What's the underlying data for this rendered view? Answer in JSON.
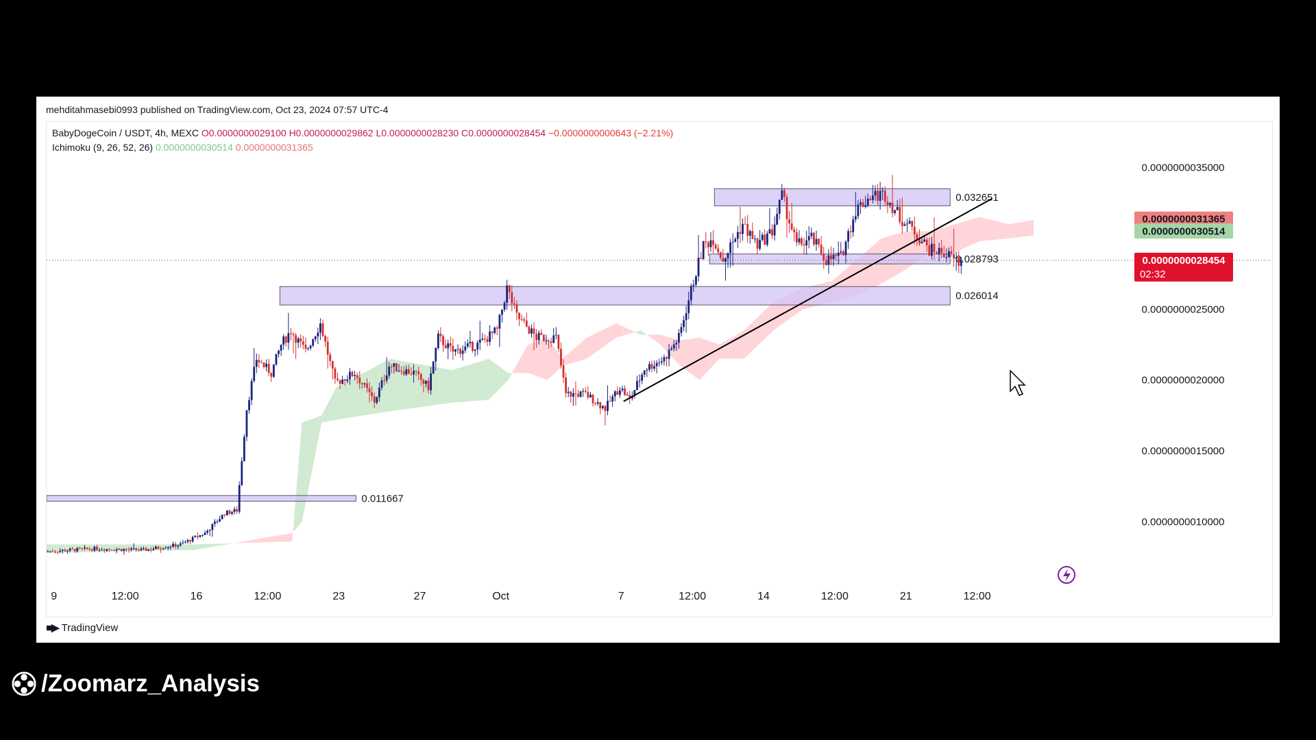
{
  "publisher": "mehditahmasebi0993 published on TradingView.com, Oct 23, 2024 07:57 UTC-4",
  "legend": {
    "symbol": "BabyDogeCoin / USDT, 4h, MEXC",
    "open": "O0.0000000029100",
    "high": "H0.0000000029862",
    "low": "L0.0000000028230",
    "close": "C0.0000000028454",
    "change": "−0.0000000000643 (−2.21%)",
    "ichimoku_label": "Ichimoku (9, 26, 52, 26)",
    "ichimoku_v1": "0.0000000030514",
    "ichimoku_v2": "0.0000000031365"
  },
  "brand": "TradingView",
  "watermark": "/Zoomarz_Analysis",
  "colors": {
    "up": "#1a237e",
    "down": "#d32f2f",
    "cloud_up": "#c8e6c9",
    "cloud_down": "#ffcdd2",
    "zone": "#d1c4f5"
  },
  "chart_data": {
    "type": "candlestick",
    "y_ticks": [
      "0.0000000035000",
      "0.0000000025000",
      "0.0000000020000",
      "0.0000000015000",
      "0.0000000010000"
    ],
    "y_tick_values": [
      35,
      25,
      20,
      15,
      10
    ],
    "ylim": [
      6.2,
      35.8
    ],
    "x_ticks": [
      "9",
      "12:00",
      "16",
      "12:00",
      "23",
      "27",
      "Oct",
      "7",
      "12:00",
      "14",
      "12:00",
      "21",
      "12:00"
    ],
    "x_tick_index": [
      3,
      32,
      61,
      90,
      119,
      152,
      185,
      234,
      263,
      292,
      321,
      350,
      379
    ],
    "x_count": 402,
    "zones": [
      {
        "label": "0.011667",
        "i0": 0,
        "i1": 126,
        "lo": 11.45,
        "hi": 11.85
      },
      {
        "label": "0.026014",
        "i0": 95,
        "i1": 368,
        "lo": 25.3,
        "hi": 26.6
      },
      {
        "label": "0.028793",
        "i0": 270,
        "i1": 368,
        "lo": 28.2,
        "hi": 28.9
      },
      {
        "label": "0.032651",
        "i0": 272,
        "i1": 368,
        "lo": 32.3,
        "hi": 33.5
      }
    ],
    "trendline": {
      "i0": 235,
      "y0": 18.5,
      "i1": 385,
      "y1": 32.8
    },
    "current_price_line": 28.454,
    "price_badges": [
      {
        "label": "0.0000000031365",
        "value": 31.365,
        "color": "#f08080"
      },
      {
        "label": "0.0000000030514",
        "value": 30.514,
        "color": "#a5d6a7"
      },
      {
        "label": "0.0000000028454",
        "value": 28.454,
        "color": "#e0112b",
        "extra": "02:32"
      }
    ],
    "key_points": [
      [
        0,
        7.9
      ],
      [
        20,
        8.1
      ],
      [
        40,
        8.0
      ],
      [
        55,
        8.4
      ],
      [
        65,
        9.2
      ],
      [
        73,
        10.6
      ],
      [
        78,
        10.8
      ],
      [
        82,
        18.0
      ],
      [
        86,
        21.5
      ],
      [
        92,
        20.5
      ],
      [
        96,
        22.5
      ],
      [
        100,
        23.5
      ],
      [
        106,
        22.0
      ],
      [
        112,
        24.0
      ],
      [
        118,
        19.8
      ],
      [
        126,
        20.5
      ],
      [
        134,
        18.5
      ],
      [
        140,
        21.0
      ],
      [
        150,
        20.5
      ],
      [
        156,
        19.5
      ],
      [
        160,
        23.0
      ],
      [
        166,
        22.0
      ],
      [
        176,
        22.5
      ],
      [
        184,
        23.5
      ],
      [
        188,
        26.5
      ],
      [
        192,
        24.5
      ],
      [
        200,
        23.0
      ],
      [
        208,
        23.0
      ],
      [
        212,
        19.0
      ],
      [
        220,
        19.0
      ],
      [
        228,
        18.0
      ],
      [
        234,
        19.5
      ],
      [
        238,
        18.6
      ],
      [
        244,
        20.8
      ],
      [
        252,
        21.5
      ],
      [
        258,
        23.0
      ],
      [
        264,
        27.0
      ],
      [
        268,
        29.5
      ],
      [
        272,
        30.0
      ],
      [
        276,
        28.5
      ],
      [
        284,
        31.0
      ],
      [
        290,
        29.5
      ],
      [
        296,
        30.5
      ],
      [
        300,
        33.0
      ],
      [
        306,
        29.5
      ],
      [
        312,
        30.0
      ],
      [
        318,
        28.5
      ],
      [
        324,
        28.7
      ],
      [
        330,
        32.0
      ],
      [
        336,
        33.0
      ],
      [
        342,
        33.1
      ],
      [
        348,
        31.5
      ],
      [
        354,
        30.5
      ],
      [
        360,
        29.2
      ],
      [
        366,
        29.0
      ],
      [
        372,
        28.3
      ]
    ],
    "cloud_points": [
      [
        0,
        8.4,
        7.8
      ],
      [
        60,
        8.4,
        8.0
      ],
      [
        100,
        8.6,
        9.2
      ],
      [
        104,
        17.0,
        10.0
      ],
      [
        112,
        17.5,
        17.0
      ],
      [
        118,
        19.5,
        17.2
      ],
      [
        140,
        21.5,
        17.8
      ],
      [
        165,
        20.7,
        18.4
      ],
      [
        180,
        21.5,
        18.6
      ],
      [
        188,
        20.5,
        20.0
      ],
      [
        196,
        20.5,
        22.5
      ],
      [
        204,
        20.0,
        23.0
      ],
      [
        210,
        21.0,
        21.5
      ],
      [
        220,
        21.5,
        23.0
      ],
      [
        232,
        23.0,
        24.0
      ],
      [
        242,
        23.5,
        23.2
      ],
      [
        250,
        22.5,
        23.2
      ],
      [
        258,
        21.0,
        22.8
      ],
      [
        266,
        20.0,
        23.0
      ],
      [
        274,
        21.5,
        22.5
      ],
      [
        284,
        21.5,
        23.5
      ],
      [
        296,
        23.5,
        25.5
      ],
      [
        308,
        25.0,
        26.5
      ],
      [
        320,
        25.5,
        27.0
      ],
      [
        330,
        26.0,
        28.5
      ],
      [
        340,
        26.8,
        30.0
      ],
      [
        350,
        27.8,
        30.5
      ],
      [
        360,
        29.0,
        30.5
      ],
      [
        370,
        29.0,
        31.0
      ],
      [
        380,
        29.8,
        31.5
      ],
      [
        392,
        30.0,
        31.0
      ],
      [
        402,
        30.2,
        31.3
      ]
    ]
  }
}
